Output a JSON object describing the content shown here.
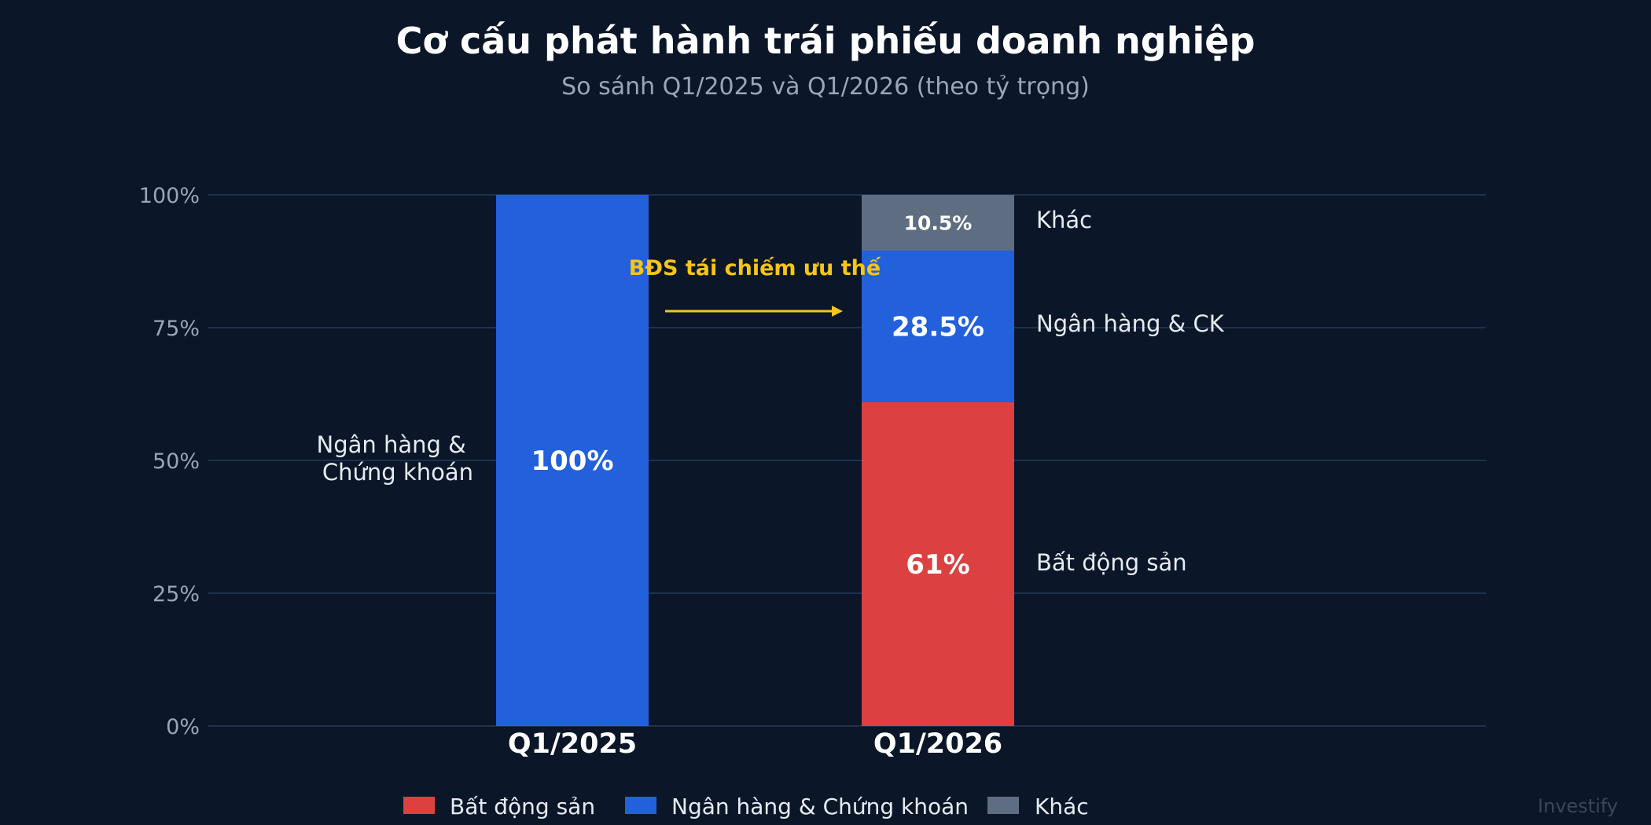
{
  "chart_data": {
    "type": "bar",
    "stacked": true,
    "title": "Cơ cấu phát hành trái phiếu doanh nghiệp",
    "subtitle": "So sánh Q1/2025 và Q1/2026 (theo tỷ trọng)",
    "categories": [
      "Q1/2025",
      "Q1/2026"
    ],
    "ylim": [
      0,
      100
    ],
    "yticks": [
      {
        "value": 0,
        "label": "0%"
      },
      {
        "value": 25,
        "label": "25%"
      },
      {
        "value": 50,
        "label": "50%"
      },
      {
        "value": 75,
        "label": "75%"
      },
      {
        "value": 100,
        "label": "100%"
      }
    ],
    "grid": true,
    "legend_position": "bottom",
    "series": [
      {
        "name": "Bất động sản",
        "color": "#dc4040",
        "values": [
          0,
          61
        ],
        "labels": [
          "",
          "61%"
        ]
      },
      {
        "name": "Ngân hàng & Chứng khoán",
        "color": "#2360dc",
        "values": [
          100,
          28.5
        ],
        "labels": [
          "100%",
          "28.5%"
        ]
      },
      {
        "name": "Khác",
        "color": "#5f6d82",
        "values": [
          0,
          10.5
        ],
        "labels": [
          "",
          "10.5%"
        ]
      }
    ],
    "side_labels": {
      "left": [
        "Ngân hàng &",
        "Chứng khoán"
      ],
      "right": [
        "Bất động sản",
        "Ngân hàng & CK",
        "Khác"
      ]
    },
    "annotation": "BĐS tái chiếm ưu thế",
    "annotation_color": "#f5c518"
  },
  "brand": "Investify"
}
